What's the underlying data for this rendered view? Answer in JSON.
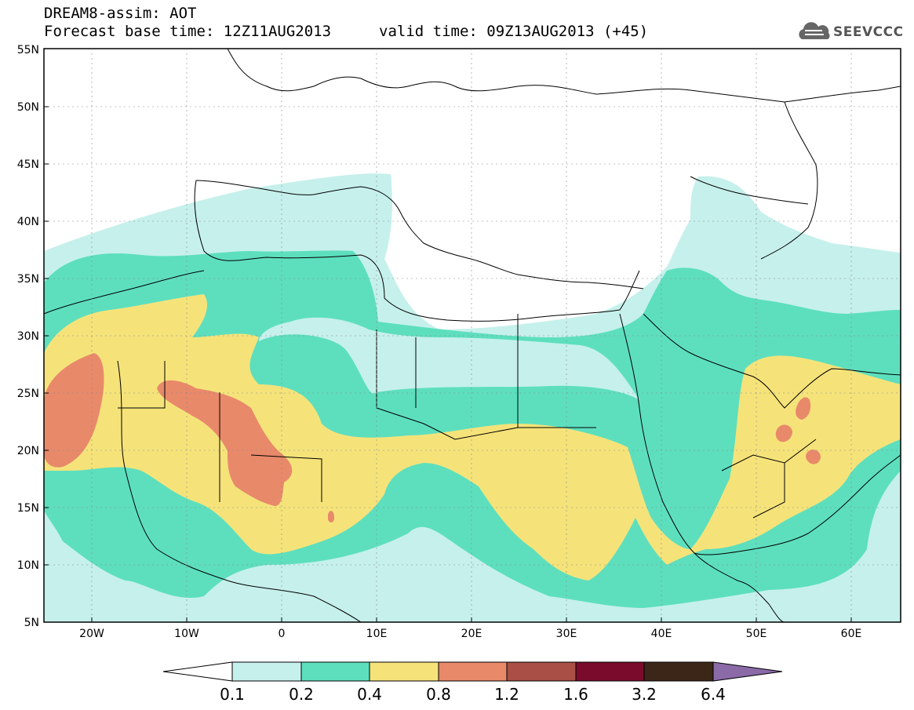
{
  "header": {
    "line1": "DREAM8-assim: AOT",
    "line2": "Forecast base time: 12Z11AUG2013",
    "valid": "valid time: 09Z13AUG2013 (+45)",
    "logo": "SEEVCCC"
  },
  "axes": {
    "lat_labels": [
      "55N",
      "50N",
      "45N",
      "40N",
      "35N",
      "30N",
      "25N",
      "20N",
      "15N",
      "10N",
      "5N"
    ],
    "lon_labels": [
      "20W",
      "10W",
      "0",
      "10E",
      "20E",
      "30E",
      "40E",
      "50E",
      "60E"
    ]
  },
  "colorbar": {
    "labels": [
      "0.1",
      "0.2",
      "0.4",
      "0.8",
      "1.2",
      "1.6",
      "3.2",
      "6.4"
    ],
    "colors": [
      "#ffffff",
      "#c6f0ec",
      "#5ddfbe",
      "#f5e37a",
      "#e8896a",
      "#a94f45",
      "#7a0b2c",
      "#3c2618",
      "#8b6aa8"
    ]
  },
  "palette": {
    "c01": "#c6f0ec",
    "c02": "#5ddfbe",
    "c04": "#f5e37a",
    "c08": "#e8896a"
  }
}
